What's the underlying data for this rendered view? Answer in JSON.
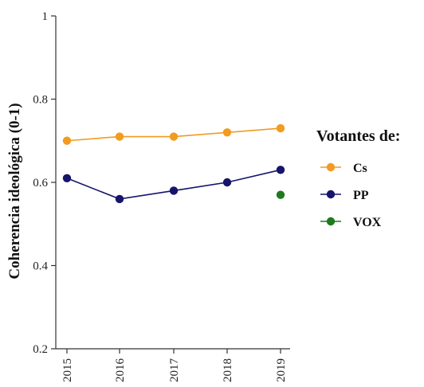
{
  "chart_data": {
    "type": "line",
    "title": "",
    "xlabel": "",
    "ylabel": "Coherencia ideológica (0-1)",
    "x": [
      "2015",
      "2016",
      "2017",
      "2018",
      "2019"
    ],
    "ylim": [
      0.2,
      1
    ],
    "yticks": [
      "0.2",
      "0.4",
      "0.6",
      "0.8",
      "1"
    ],
    "grid": false,
    "legend": {
      "title": "Votantes de:",
      "placement": "right"
    },
    "series": [
      {
        "name": "Cs",
        "color": "#F29B1F",
        "values": [
          0.7,
          0.71,
          0.71,
          0.72,
          0.73
        ]
      },
      {
        "name": "PP",
        "color": "#15156B",
        "values": [
          0.61,
          0.56,
          0.58,
          0.6,
          0.63
        ]
      },
      {
        "name": "VOX",
        "color": "#1E7A1E",
        "values": [
          null,
          null,
          null,
          null,
          0.57
        ]
      }
    ]
  }
}
